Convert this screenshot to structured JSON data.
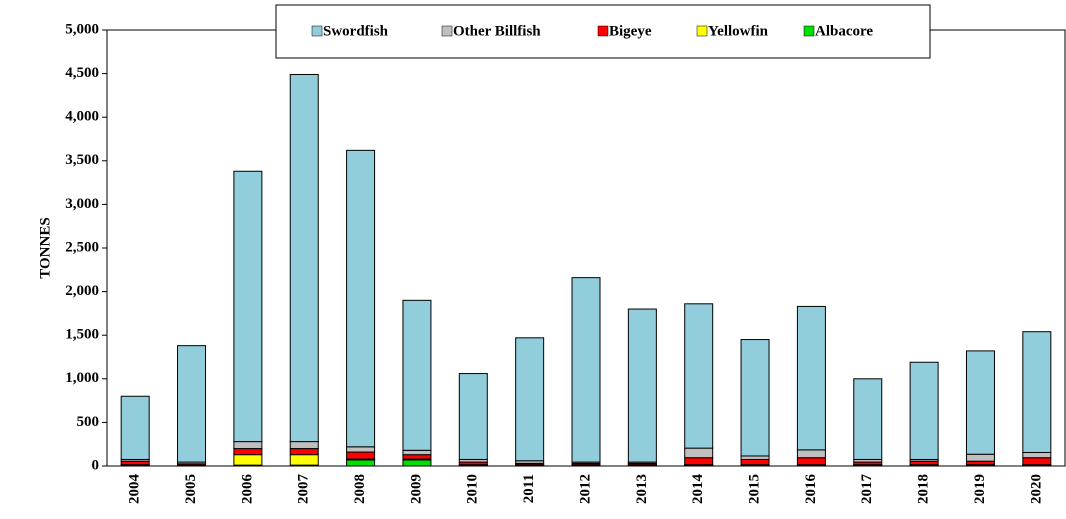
{
  "chart_data": {
    "type": "bar",
    "stacked": true,
    "y_label": "TONNES",
    "categories": [
      "2004",
      "2005",
      "2006",
      "2007",
      "2008",
      "2009",
      "2010",
      "2011",
      "2012",
      "2013",
      "2014",
      "2015",
      "2016",
      "2017",
      "2018",
      "2019",
      "2020"
    ],
    "series": [
      {
        "name": "Albacore",
        "color": "#00e000",
        "values": [
          10,
          5,
          10,
          10,
          70,
          70,
          10,
          10,
          10,
          10,
          10,
          10,
          10,
          10,
          10,
          10,
          10
        ]
      },
      {
        "name": "Yellowfin",
        "color": "#ffff00",
        "values": [
          5,
          5,
          120,
          120,
          10,
          10,
          5,
          5,
          5,
          5,
          5,
          5,
          5,
          5,
          5,
          5,
          5
        ]
      },
      {
        "name": "Bigeye",
        "color": "#ff0000",
        "values": [
          40,
          15,
          70,
          70,
          80,
          50,
          30,
          15,
          15,
          15,
          80,
          60,
          80,
          30,
          40,
          40,
          80
        ]
      },
      {
        "name": "Other Billfish",
        "color": "#bfbfbf",
        "values": [
          20,
          20,
          80,
          80,
          60,
          50,
          30,
          30,
          15,
          15,
          110,
          40,
          90,
          30,
          20,
          80,
          60
        ]
      },
      {
        "name": "Swordfish",
        "color": "#92cddc",
        "values": [
          725,
          1335,
          3100,
          4210,
          3400,
          1720,
          985,
          1410,
          2115,
          1755,
          1655,
          1335,
          1645,
          925,
          1115,
          1185,
          1385
        ]
      }
    ],
    "ylim": [
      0,
      5000
    ],
    "yticks": [
      0,
      500,
      {
        "value": 1000,
        "label": "1,000"
      },
      {
        "value": 1500,
        "label": "1,500"
      },
      {
        "value": 2000,
        "label": "2,000"
      },
      {
        "value": 2500,
        "label": "2,500"
      },
      {
        "value": 3000,
        "label": "3,000"
      },
      {
        "value": 3500,
        "label": "3,500"
      },
      {
        "value": 4000,
        "label": "4,000"
      },
      {
        "value": 4500,
        "label": "4,500"
      },
      {
        "value": 5000,
        "label": "5,000"
      }
    ],
    "grid": false,
    "legend": "top"
  }
}
